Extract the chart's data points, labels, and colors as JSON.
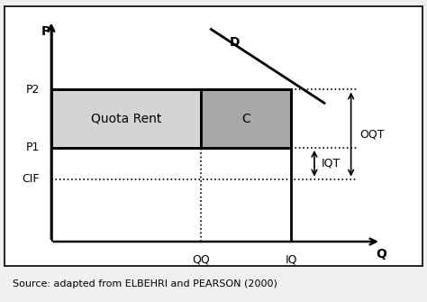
{
  "fig_width": 4.74,
  "fig_height": 3.35,
  "dpi": 100,
  "bg_color": "#f0f0f0",
  "plot_bg_color": "#ffffff",
  "axis_label_P": "P",
  "axis_label_Q": "Q",
  "axis_label_D": "D",
  "label_QQ": "QQ",
  "label_IQ": "IQ",
  "label_P1": "P1",
  "label_P2": "P2",
  "label_CIF": "CIF",
  "label_OQT": "OQT",
  "label_IQT": "IQT",
  "label_quota_rent": "Quota Rent",
  "label_C": "C",
  "source_full": "Source: adapted from ELBEHRI and PEARSON (2000)",
  "xlim": [
    0,
    10
  ],
  "ylim": [
    0,
    10
  ],
  "P1": 4.2,
  "P2": 6.8,
  "CIF": 2.8,
  "QQ": 4.5,
  "IQ": 7.2,
  "quota_rent_color": "#d4d4d4",
  "C_color": "#a8a8a8",
  "demand_x1": 4.8,
  "demand_y1": 9.5,
  "demand_x2": 8.2,
  "demand_y2": 6.2,
  "OQT_x": 9.0,
  "IQT_x": 7.9,
  "arrow_lw": 1.2,
  "dotted_lw": 1.2,
  "solid_lw": 2.0,
  "font_size_labels": 9,
  "font_size_source": 8
}
